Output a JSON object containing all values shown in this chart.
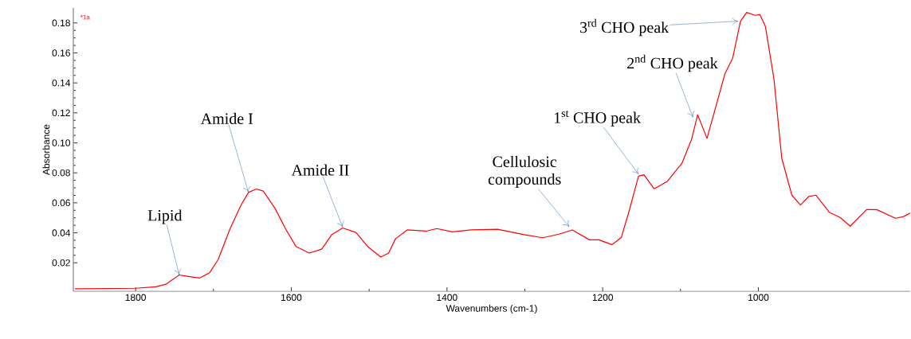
{
  "chart_data": {
    "type": "line",
    "xlabel": "Wavenumbers (cm-1)",
    "ylabel": "Absorbance",
    "xlim": [
      1880,
      805
    ],
    "ylim": [
      0.001,
      0.19
    ],
    "xticks": [
      1800,
      1600,
      1400,
      1200,
      1000
    ],
    "yticks": [
      0.02,
      0.04,
      0.06,
      0.08,
      {
        "value": 0.1,
        "label": "0.10"
      },
      0.12,
      0.14,
      0.16,
      0.18
    ],
    "series": [
      {
        "name": "*1a",
        "color": "#ff0000",
        "x": [
          1878,
          1868,
          1800,
          1774,
          1761,
          1752,
          1744,
          1734,
          1718,
          1705,
          1694,
          1679,
          1665,
          1655,
          1645,
          1636,
          1621,
          1607,
          1594,
          1577,
          1561,
          1548,
          1534,
          1517,
          1502,
          1485,
          1475,
          1466,
          1451,
          1427,
          1413,
          1393,
          1369,
          1335,
          1301,
          1277,
          1256,
          1239,
          1217,
          1205,
          1188,
          1176,
          1166,
          1154,
          1147,
          1134,
          1117,
          1098,
          1086,
          1078,
          1066,
          1057,
          1043,
          1033,
          1023,
          1015,
          1004,
          998,
          991,
          980,
          970,
          957,
          946,
          935,
          926,
          909,
          895,
          882,
          861,
          848,
          824,
          814,
          805
        ],
        "values": [
          0.0027,
          0.0027,
          0.003,
          0.004,
          0.0057,
          0.0089,
          0.0119,
          0.011,
          0.0098,
          0.0133,
          0.0221,
          0.0423,
          0.0581,
          0.0669,
          0.0692,
          0.0678,
          0.0564,
          0.0423,
          0.0309,
          0.0265,
          0.0291,
          0.0388,
          0.0432,
          0.0402,
          0.0309,
          0.0238,
          0.0265,
          0.0361,
          0.0419,
          0.0411,
          0.0428,
          0.0406,
          0.0419,
          0.0423,
          0.0388,
          0.0367,
          0.0391,
          0.0419,
          0.0353,
          0.0353,
          0.0321,
          0.037,
          0.0546,
          0.0778,
          0.0787,
          0.0694,
          0.0743,
          0.0866,
          0.1021,
          0.1188,
          0.103,
          0.1197,
          0.1461,
          0.1566,
          0.1812,
          0.187,
          0.1851,
          0.1856,
          0.1777,
          0.1425,
          0.0898,
          0.0651,
          0.0585,
          0.0643,
          0.0651,
          0.0537,
          0.0502,
          0.0444,
          0.0555,
          0.0555,
          0.0497,
          0.0507,
          0.0532
        ]
      }
    ],
    "annotations": [
      {
        "text": "Lipid",
        "x": 1744,
        "y": 0.0119
      },
      {
        "text": "Amide I",
        "x": 1655,
        "y": 0.0669
      },
      {
        "text": "Amide II",
        "x": 1534,
        "y": 0.0437
      },
      {
        "text": "Cellulosic compounds",
        "x": 1243,
        "y": 0.044
      },
      {
        "text": "1$^{st}$ CHO peak",
        "x": 1154,
        "y": 0.0791
      },
      {
        "text": "2$^{nd}$ CHO peak",
        "x": 1084,
        "y": 0.117
      },
      {
        "text": "3$^{rd}$ CHO peak",
        "x": 1026,
        "y": 0.1812
      }
    ]
  }
}
